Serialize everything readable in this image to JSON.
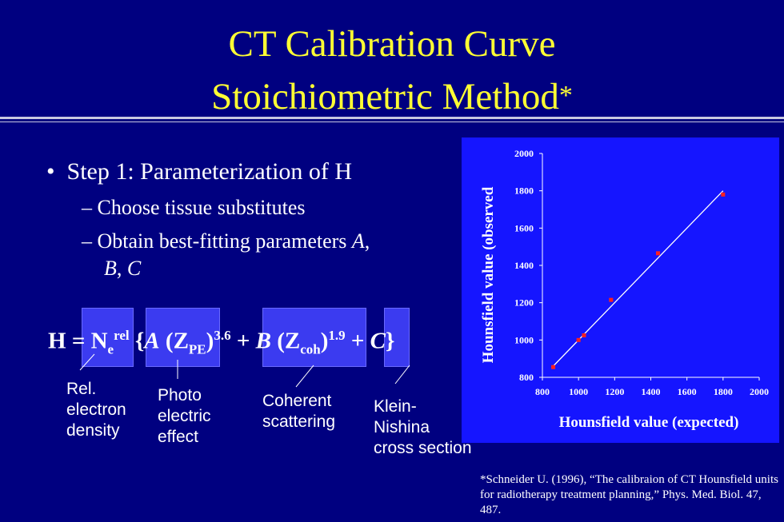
{
  "title": {
    "line1": "CT Calibration Curve",
    "line2": "Stoichiometric Method",
    "asterisk": "*"
  },
  "bullets": {
    "main": "Step 1: Parameterization of  H",
    "sub1": "Choose tissue substitutes",
    "sub2_text": "Obtain best-fitting parameters ",
    "param_a": "A",
    "param_b": "B",
    "param_c": "C"
  },
  "formula": {
    "h": "H",
    "equals": "=",
    "n": "N",
    "n_sub": "e",
    "n_sup": "rel",
    "brace_open": "{",
    "a": "A",
    "z": "Z",
    "pe": "PE",
    "exp_pe": "3.6",
    "plus": "+",
    "b": "B",
    "coh": "coh",
    "exp_coh": "1.9",
    "c": "C",
    "brace_close": "}"
  },
  "labels": {
    "rel": "Rel.\nelectron\ndensity",
    "photo": "Photo\nelectric\neffect",
    "coherent": "Coherent\nscattering",
    "klein": "Klein-\nNishina\ncross section"
  },
  "reference": "*Schneider U. (1996), “The calibraion of CT Hounsfield units for radiotherapy treatment planning,” Phys. Med. Biol. 47, 487.",
  "colors": {
    "background": "#000080",
    "title": "#ffff33",
    "chart_bg": "#1515ff",
    "points": "#ff2020",
    "fit_line": "#ffffff"
  },
  "chart_data": {
    "type": "scatter",
    "xlabel": "Hounsfield value (expected)",
    "ylabel": "Hounsfield value (observed",
    "xlim": [
      800,
      2000
    ],
    "ylim": [
      800,
      2000
    ],
    "xticks": [
      800,
      1000,
      1200,
      1400,
      1600,
      1800,
      2000
    ],
    "yticks": [
      800,
      1000,
      1200,
      1400,
      1600,
      1800,
      2000
    ],
    "points": [
      {
        "x": 860,
        "y": 855
      },
      {
        "x": 1000,
        "y": 1000
      },
      {
        "x": 1030,
        "y": 1025
      },
      {
        "x": 1180,
        "y": 1215
      },
      {
        "x": 1440,
        "y": 1465
      },
      {
        "x": 1800,
        "y": 1780
      }
    ],
    "fit_line": [
      {
        "x": 860,
        "y": 860
      },
      {
        "x": 1800,
        "y": 1800
      }
    ],
    "grid": false,
    "legend": "none"
  }
}
